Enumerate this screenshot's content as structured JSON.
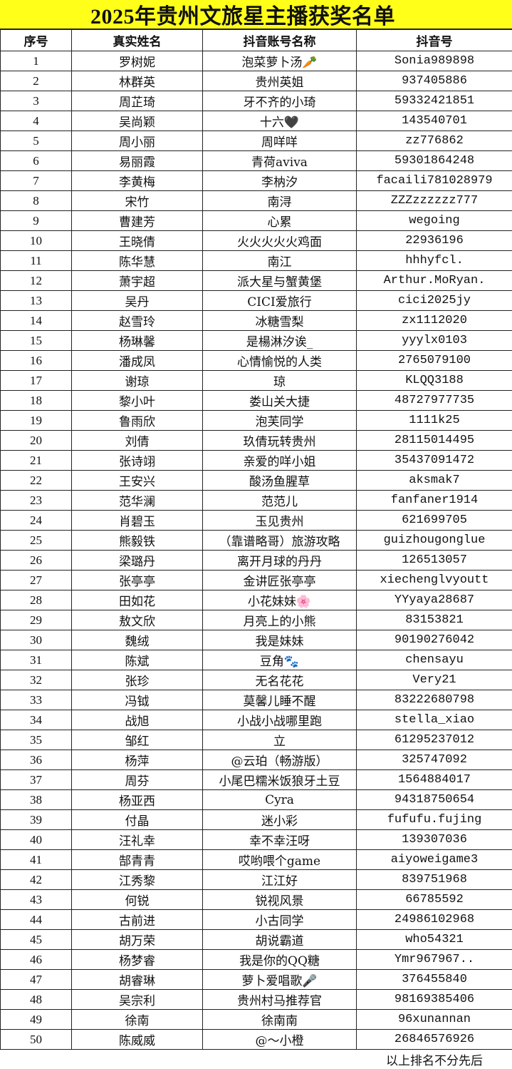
{
  "title": "2025年贵州文旅星主播获奖名单",
  "headers": [
    "序号",
    "真实姓名",
    "抖音账号名称",
    "抖音号"
  ],
  "rows": [
    [
      "1",
      "罗树妮",
      "泡菜萝卜汤🥕",
      "Sonia989898"
    ],
    [
      "2",
      "林群英",
      "贵州英姐",
      "937405886"
    ],
    [
      "3",
      "周芷琦",
      "牙不齐的小琦",
      "59332421851"
    ],
    [
      "4",
      "吴尚颖",
      "十六🖤",
      "143540701"
    ],
    [
      "5",
      "周小丽",
      "周咩咩",
      "zz776862"
    ],
    [
      "6",
      "易丽霞",
      "青荷aviva",
      "59301864248"
    ],
    [
      "7",
      "李黄梅",
      "李枘汐",
      "facaili781028979"
    ],
    [
      "8",
      "宋竹",
      "南浔",
      "ZZZzzzzzz777"
    ],
    [
      "9",
      "曹建芳",
      "心累",
      "wegoing"
    ],
    [
      "10",
      "王晓倩",
      "火火火火火鸡面",
      "22936196"
    ],
    [
      "11",
      "陈华慧",
      "南江",
      "hhhyfcl."
    ],
    [
      "12",
      "萧宇超",
      "派大星与蟹黄堡",
      "Arthur.MoRyan."
    ],
    [
      "13",
      "吴丹",
      "CICI爱旅行",
      "cici2025jy"
    ],
    [
      "14",
      "赵雪玲",
      "冰糖雪梨",
      "zx1112020"
    ],
    [
      "15",
      "杨琳馨",
      "是楊淋汐诶_",
      "yyylx0103"
    ],
    [
      "16",
      "潘成凤",
      "心情愉悦的人类",
      "2765079100"
    ],
    [
      "17",
      "谢琼",
      "琼",
      "KLQQ3188"
    ],
    [
      "18",
      "黎小叶",
      "娄山关大捷",
      "48727977735"
    ],
    [
      "19",
      "鲁雨欣",
      "泡芙同学",
      "1111k25"
    ],
    [
      "20",
      "刘倩",
      "玖倩玩转贵州",
      "28115014495"
    ],
    [
      "21",
      "张诗翊",
      "亲爱的咩小姐",
      "35437091472"
    ],
    [
      "22",
      "王安兴",
      "酸汤鱼腥草",
      "aksmak7"
    ],
    [
      "23",
      "范华澜",
      "范范儿",
      "fanfaner1914"
    ],
    [
      "24",
      "肖碧玉",
      "玉见贵州",
      "621699705"
    ],
    [
      "25",
      "熊毅铁",
      "（靠谱略哥）旅游攻略",
      "guizhougonglue"
    ],
    [
      "26",
      "梁璐丹",
      "离开月球的丹丹",
      "126513057"
    ],
    [
      "27",
      "张亭亭",
      "金讲匠张亭亭",
      "xiechenglvyoutt"
    ],
    [
      "28",
      "田如花",
      "小花妹妹🌸",
      "YYyaya28687"
    ],
    [
      "29",
      "敖文欣",
      "月亮上的小熊",
      "83153821"
    ],
    [
      "30",
      "魏绒",
      "我是妹妹",
      "90190276042"
    ],
    [
      "31",
      "陈斌",
      "豆角🐾",
      "chensayu"
    ],
    [
      "32",
      "张珍",
      "无名花花",
      "Very21"
    ],
    [
      "33",
      "冯钺",
      "莫馨儿睡不醒",
      "83222680798"
    ],
    [
      "34",
      "战旭",
      "小战小战哪里跑",
      "stella_xiao"
    ],
    [
      "35",
      "邹红",
      "立",
      "61295237012"
    ],
    [
      "36",
      "杨萍",
      "@云珀（畅游版）",
      "325747092"
    ],
    [
      "37",
      "周芬",
      "小尾巴糯米饭狼牙土豆",
      "1564884017"
    ],
    [
      "38",
      "杨亚西",
      "Cyra",
      "94318750654"
    ],
    [
      "39",
      "付晶",
      "迷小彩",
      "fufufu.fujing"
    ],
    [
      "40",
      "汪礼幸",
      "幸不幸汪呀",
      "139307036"
    ],
    [
      "41",
      "郜青青",
      "哎哟喂个game",
      "aiyoweigame3"
    ],
    [
      "42",
      "江秀黎",
      "江江好",
      "839751968"
    ],
    [
      "43",
      "何锐",
      "锐视风景",
      "66785592"
    ],
    [
      "44",
      "古前进",
      "小古同学",
      "24986102968"
    ],
    [
      "45",
      "胡万荣",
      "胡说霸道",
      "who54321"
    ],
    [
      "46",
      "杨梦睿",
      "我是你的QQ糖",
      "Ymr967967.."
    ],
    [
      "47",
      "胡睿琳",
      "萝卜爱唱歌🎤",
      "376455840"
    ],
    [
      "48",
      "吴宗利",
      "贵州村马推荐官",
      "98169385406"
    ],
    [
      "49",
      "徐南",
      "徐南南",
      "96xunannan"
    ],
    [
      "50",
      "陈威威",
      "@～小橙",
      "26846576926"
    ]
  ],
  "footer_note": "以上排名不分先后",
  "colors": {
    "title_background": "#ffff1a",
    "grid": "#222222"
  }
}
